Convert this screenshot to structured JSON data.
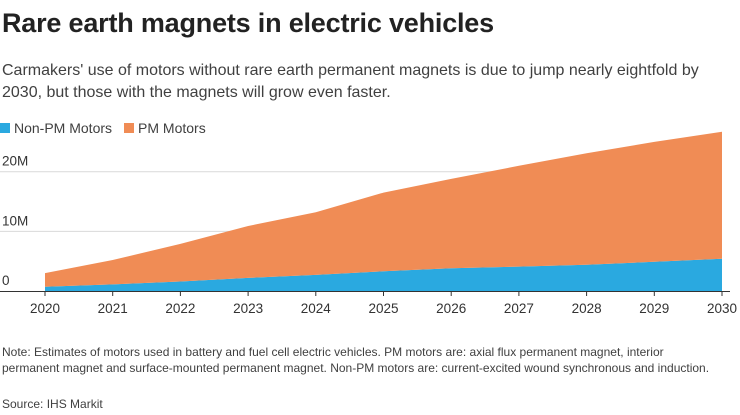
{
  "chart_data": {
    "type": "area",
    "title": "Rare earth magnets in electric vehicles",
    "subtitle": "Carmakers' use of motors without rare earth permanent magnets is due to jump nearly eightfold by 2030, but those with the magnets will grow even faster.",
    "stacked": true,
    "x": [
      "2020",
      "2021",
      "2022",
      "2023",
      "2024",
      "2025",
      "2026",
      "2027",
      "2028",
      "2029",
      "2030"
    ],
    "series": [
      {
        "name": "Non-PM Motors",
        "color": "#2aa9e0",
        "values": [
          0.7,
          1.1,
          1.6,
          2.2,
          2.7,
          3.3,
          3.8,
          4.1,
          4.4,
          4.9,
          5.4
        ]
      },
      {
        "name": "PM Motors",
        "color": "#f08c55",
        "values": [
          2.3,
          4.1,
          6.3,
          8.7,
          10.5,
          13.2,
          15.0,
          16.9,
          18.7,
          20.1,
          21.3
        ]
      }
    ],
    "ylim": [
      0,
      27
    ],
    "yticks": [
      {
        "value": 0,
        "label": "0"
      },
      {
        "value": 10,
        "label": "10M"
      },
      {
        "value": 20,
        "label": "20M"
      }
    ],
    "grid": true,
    "legend_position": "top-left",
    "xlabel": "",
    "ylabel": ""
  },
  "note": "Note: Estimates of motors used in battery and fuel cell electric vehicles. PM motors are: axial flux permanent magnet, interior permanent magnet and surface-mounted permanent magnet. Non-PM motors are: current-excited wound synchronous and induction.",
  "source": "Source: IHS Markit"
}
